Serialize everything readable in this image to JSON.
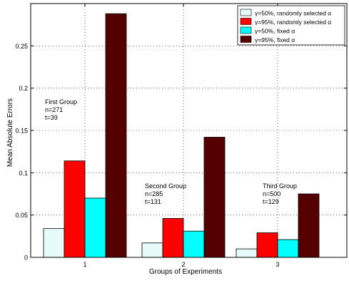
{
  "chart_data": {
    "type": "bar",
    "title": "",
    "xlabel": "Groups of Experiments",
    "ylabel": "Mean Absolute Errors",
    "categories": [
      "1",
      "2",
      "3"
    ],
    "ylim": [
      0,
      0.3
    ],
    "yticks": [
      "0",
      "0.05",
      "0.1",
      "0.15",
      "0.2",
      "0.25"
    ],
    "grid": true,
    "legend_position": "top-right",
    "series": [
      {
        "name": "γ=50%, randomly selected α",
        "color": "#e6fafa",
        "values": [
          0.034,
          0.017,
          0.01
        ]
      },
      {
        "name": "γ=95%, randomly selected α",
        "color": "#ff0000",
        "values": [
          0.114,
          0.046,
          0.029
        ]
      },
      {
        "name": "γ=50%, fixed α",
        "color": "#00ffff",
        "values": [
          0.07,
          0.031,
          0.021
        ]
      },
      {
        "name": "γ=95%, fixed α",
        "color": "#550000",
        "values": [
          0.288,
          0.142,
          0.075
        ]
      }
    ],
    "annotations": [
      {
        "lines": [
          "First Group",
          "n=271",
          "t=39"
        ]
      },
      {
        "lines": [
          "Second Group",
          "n=285",
          "t=131"
        ]
      },
      {
        "lines": [
          "Third Group",
          "n=500",
          "t=129"
        ]
      }
    ]
  }
}
